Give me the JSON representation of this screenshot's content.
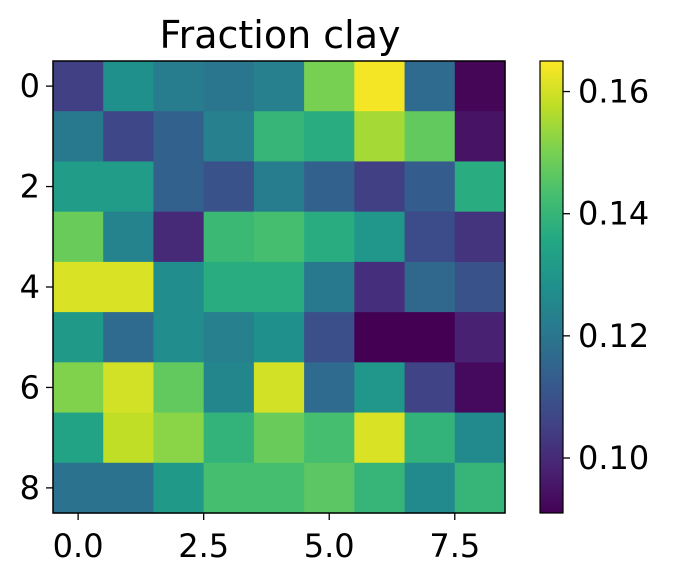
{
  "chart_data": {
    "type": "heatmap",
    "title": "Fraction clay",
    "xlabel": "",
    "ylabel": "",
    "colormap": "viridis",
    "x_ticks": [
      "0.0",
      "2.5",
      "5.0",
      "7.5"
    ],
    "x_tick_values": [
      0,
      2.5,
      5,
      7.5
    ],
    "y_ticks": [
      "0",
      "2",
      "4",
      "6",
      "8"
    ],
    "y_tick_values": [
      0,
      2,
      4,
      6,
      8
    ],
    "xlim": [
      -0.5,
      8.5
    ],
    "ylim": [
      8.5,
      -0.5
    ],
    "colorbar": {
      "range": [
        0.091,
        0.165
      ],
      "ticks": [
        "0.10",
        "0.12",
        "0.14",
        "0.16"
      ],
      "tick_values": [
        0.1,
        0.12,
        0.14,
        0.16
      ]
    },
    "values": [
      [
        0.105,
        0.128,
        0.122,
        0.12,
        0.123,
        0.15,
        0.164,
        0.117,
        0.092
      ],
      [
        0.121,
        0.107,
        0.114,
        0.123,
        0.14,
        0.137,
        0.155,
        0.147,
        0.095
      ],
      [
        0.132,
        0.132,
        0.114,
        0.11,
        0.122,
        0.114,
        0.105,
        0.113,
        0.137
      ],
      [
        0.148,
        0.124,
        0.1,
        0.141,
        0.143,
        0.137,
        0.13,
        0.108,
        0.102
      ],
      [
        0.161,
        0.161,
        0.127,
        0.137,
        0.137,
        0.121,
        0.101,
        0.116,
        0.11
      ],
      [
        0.131,
        0.117,
        0.127,
        0.123,
        0.128,
        0.109,
        0.091,
        0.091,
        0.098
      ],
      [
        0.151,
        0.16,
        0.147,
        0.125,
        0.16,
        0.117,
        0.13,
        0.106,
        0.093
      ],
      [
        0.134,
        0.158,
        0.152,
        0.139,
        0.148,
        0.143,
        0.161,
        0.139,
        0.126
      ],
      [
        0.119,
        0.119,
        0.131,
        0.143,
        0.143,
        0.146,
        0.14,
        0.126,
        0.14
      ]
    ]
  }
}
